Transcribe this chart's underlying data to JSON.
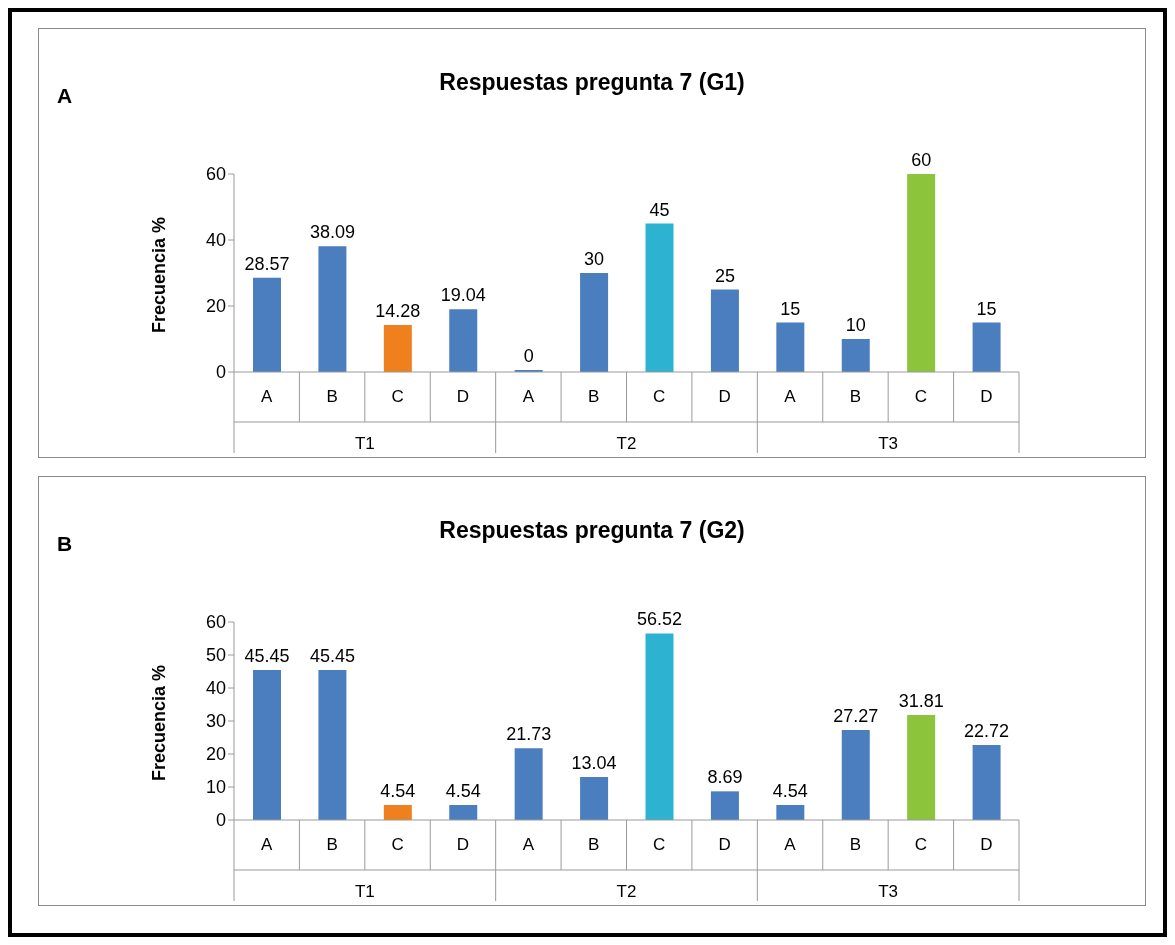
{
  "chart_data": [
    {
      "type": "bar",
      "title": "Respuestas pregunta 7 (G1)",
      "ylabel": "Frecuencia %",
      "categories": [
        "A",
        "B",
        "C",
        "D",
        "A",
        "B",
        "C",
        "D",
        "A",
        "B",
        "C",
        "D"
      ],
      "values": [
        28.57,
        38.09,
        14.28,
        19.04,
        0,
        30,
        45,
        25,
        15,
        10,
        60,
        15
      ],
      "colors": [
        "#4a7ebf",
        "#4a7ebf",
        "#f07f1e",
        "#4a7ebf",
        "#4a7ebf",
        "#4a7ebf",
        "#2db2d2",
        "#4a7ebf",
        "#4a7ebf",
        "#4a7ebf",
        "#8cc43c",
        "#4a7ebf"
      ],
      "ylim": [
        0,
        60
      ],
      "yticks": [
        0,
        20,
        40,
        60
      ],
      "data_labels": true,
      "grid": false,
      "legend": false,
      "annotations": [
        "A",
        "T1",
        "T2",
        "T3"
      ]
    },
    {
      "type": "bar",
      "title": "Respuestas pregunta 7 (G2)",
      "ylabel": "Frecuencia %",
      "categories": [
        "A",
        "B",
        "C",
        "D",
        "A",
        "B",
        "C",
        "D",
        "A",
        "B",
        "C",
        "D"
      ],
      "values": [
        45.45,
        45.45,
        4.54,
        4.54,
        21.73,
        13.04,
        56.52,
        8.69,
        4.54,
        27.27,
        31.81,
        22.72
      ],
      "colors": [
        "#4a7ebf",
        "#4a7ebf",
        "#f07f1e",
        "#4a7ebf",
        "#4a7ebf",
        "#4a7ebf",
        "#2db2d2",
        "#4a7ebf",
        "#4a7ebf",
        "#4a7ebf",
        "#8cc43c",
        "#4a7ebf"
      ],
      "ylim": [
        0,
        60
      ],
      "yticks": [
        0,
        10,
        20,
        30,
        40,
        50,
        60
      ],
      "data_labels": true,
      "grid": false,
      "legend": false,
      "annotations": [
        "B",
        "T1",
        "T2",
        "T3"
      ]
    }
  ]
}
